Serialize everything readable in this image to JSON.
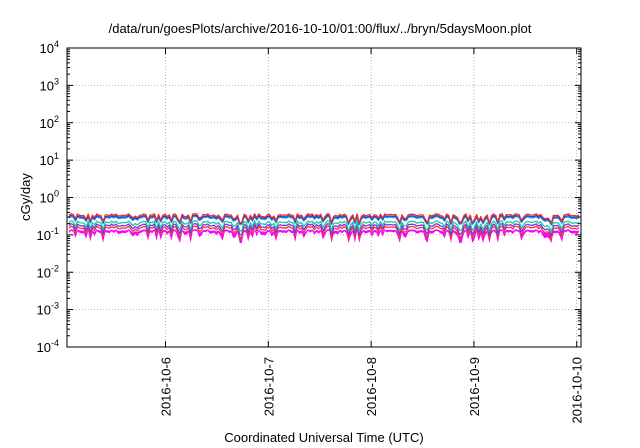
{
  "chart_data": {
    "type": "line",
    "title": "/data/run/goesPlots/archive/2016-10-10/01:00/flux/../bryn/5daysMoon.plot",
    "xlabel": "Coordinated Universal Time (UTC)",
    "ylabel": "cGy/day",
    "yscale": "log",
    "ylim": [
      0.0001,
      10000
    ],
    "xlim": [
      "2016-10-05 01:00",
      "2016-10-10 01:00"
    ],
    "grid": true,
    "x_ticks": [
      {
        "label": "2016-10-6",
        "t": "2016-10-06 00:00"
      },
      {
        "label": "2016-10-7",
        "t": "2016-10-07 00:00"
      },
      {
        "label": "2016-10-8",
        "t": "2016-10-08 00:00"
      },
      {
        "label": "2016-10-9",
        "t": "2016-10-09 00:00"
      },
      {
        "label": "2016-10-10",
        "t": "2016-10-10 00:00"
      }
    ],
    "y_ticks": [
      {
        "base": "10",
        "exp": "-4",
        "value": 0.0001
      },
      {
        "base": "10",
        "exp": "-3",
        "value": 0.001
      },
      {
        "base": "10",
        "exp": "-2",
        "value": 0.01
      },
      {
        "base": "10",
        "exp": "-1",
        "value": 0.1
      },
      {
        "base": "10",
        "exp": "0",
        "value": 1
      },
      {
        "base": "10",
        "exp": "1",
        "value": 10
      },
      {
        "base": "10",
        "exp": "2",
        "value": 100
      },
      {
        "base": "10",
        "exp": "3",
        "value": 1000
      },
      {
        "base": "10",
        "exp": "4",
        "value": 10000
      }
    ],
    "series": [
      {
        "color": "#e8302a",
        "level": 0.33,
        "dip": 0.55,
        "kind": "line"
      },
      {
        "color": "#2a3fd8",
        "level": 0.3,
        "dip": 0.5,
        "kind": "line"
      },
      {
        "color": "#1aa0e8",
        "level": 0.28,
        "dip": 0.5,
        "kind": "line"
      },
      {
        "color": "#20c8a0",
        "level": 0.21,
        "dip": 0.6,
        "kind": "line"
      },
      {
        "color": "#8a2be2",
        "level": 0.175,
        "dip": 0.65,
        "kind": "line"
      },
      {
        "color": "#e04040",
        "level": 0.15,
        "dip": 0.7,
        "kind": "line"
      },
      {
        "color": "#ff00ff",
        "level": 0.13,
        "dip": 0.45,
        "kind": "band"
      }
    ]
  }
}
